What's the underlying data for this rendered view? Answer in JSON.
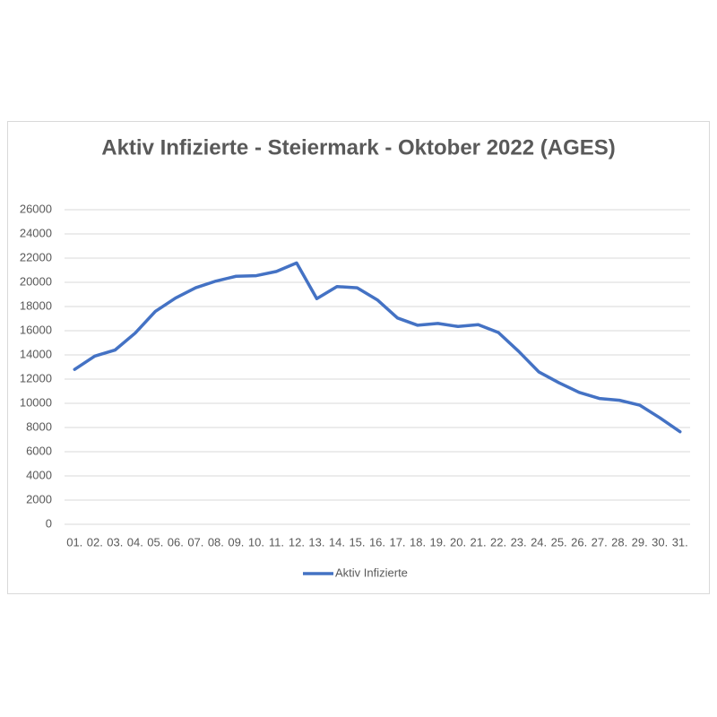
{
  "chart_data": {
    "type": "line",
    "title": "Aktiv Infizierte - Steiermark - Oktober 2022 (AGES)",
    "categories": [
      "01.",
      "02.",
      "03.",
      "04.",
      "05.",
      "06.",
      "07.",
      "08.",
      "09.",
      "10.",
      "11.",
      "12.",
      "13.",
      "14.",
      "15.",
      "16.",
      "17.",
      "18.",
      "19.",
      "20.",
      "21.",
      "22.",
      "23.",
      "24.",
      "25.",
      "26.",
      "27.",
      "28.",
      "29.",
      "30.",
      "31."
    ],
    "series": [
      {
        "name": "Aktiv Infizierte",
        "color": "#4472c4",
        "values": [
          12800,
          13900,
          14400,
          15800,
          17600,
          18700,
          19550,
          20100,
          20500,
          20550,
          20900,
          21600,
          18650,
          19650,
          19550,
          18550,
          17050,
          16450,
          16600,
          16350,
          16500,
          15850,
          14300,
          12600,
          11700,
          10900,
          10400,
          10250,
          9850,
          8800,
          7650
        ]
      }
    ],
    "ylim": [
      0,
      26000
    ],
    "yticks": [
      0,
      2000,
      4000,
      6000,
      8000,
      10000,
      12000,
      14000,
      16000,
      18000,
      20000,
      22000,
      24000,
      26000
    ],
    "grid": true,
    "legend": "bottom"
  }
}
